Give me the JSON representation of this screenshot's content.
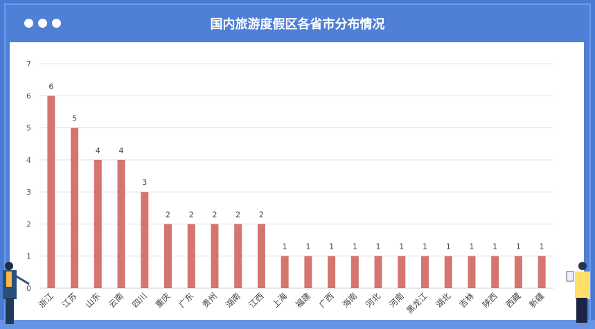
{
  "window": {
    "title": "国内旅游度假区各省市分布情况"
  },
  "chart_data": {
    "type": "bar",
    "title": "国内旅游度假区各省市分布情况",
    "categories": [
      "浙江",
      "江苏",
      "山东",
      "云南",
      "四川",
      "重庆",
      "广东",
      "贵州",
      "湖南",
      "江西",
      "上海",
      "福建",
      "广西",
      "海南",
      "河北",
      "河南",
      "黑龙江",
      "湖北",
      "吉林",
      "陕西",
      "西藏",
      "新疆"
    ],
    "values": [
      6,
      5,
      4,
      4,
      3,
      2,
      2,
      2,
      2,
      2,
      1,
      1,
      1,
      1,
      1,
      1,
      1,
      1,
      1,
      1,
      1,
      1
    ],
    "ylim": [
      0,
      7
    ],
    "yticks": [
      0,
      1,
      2,
      3,
      4,
      5,
      6,
      7
    ],
    "grid": true,
    "colors": {
      "bar": "#d5756f",
      "header": "#4f7fd6"
    }
  }
}
